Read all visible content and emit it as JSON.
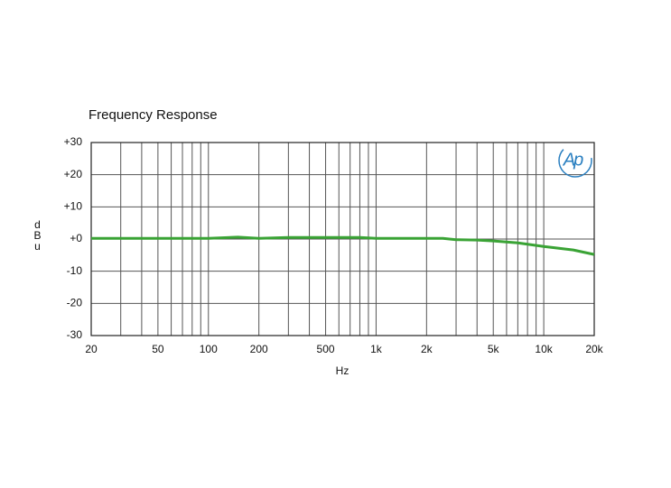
{
  "chart_data": {
    "type": "line",
    "title": "Frequency Response",
    "xlabel": "Hz",
    "ylabel": "dBu",
    "logo_text": "Ap",
    "xscale": "log",
    "grid": true,
    "xlim": [
      20,
      20000
    ],
    "ylim": [
      -30,
      30
    ],
    "xticks": [
      20,
      50,
      100,
      200,
      500,
      {
        "value": 1000,
        "label": "1k"
      },
      {
        "value": 2000,
        "label": "2k"
      },
      {
        "value": 5000,
        "label": "5k"
      },
      {
        "value": 10000,
        "label": "10k"
      },
      {
        "value": 20000,
        "label": "20k"
      }
    ],
    "xminor": [
      30,
      40,
      60,
      70,
      80,
      90,
      300,
      400,
      600,
      700,
      800,
      900,
      3000,
      4000,
      6000,
      7000,
      8000,
      9000
    ],
    "yticks": [
      {
        "value": 30,
        "label": "+30"
      },
      {
        "value": 20,
        "label": "+20"
      },
      {
        "value": 10,
        "label": "+10"
      },
      {
        "value": 0,
        "label": "+0"
      },
      -10,
      -20,
      -30
    ],
    "x": [
      20,
      50,
      100,
      150,
      200,
      300,
      500,
      800,
      1000,
      2000,
      2500,
      3000,
      4000,
      5000,
      7000,
      10000,
      15000,
      20000
    ],
    "series": [
      {
        "color": "#3aa335",
        "values": [
          0.2,
          0.2,
          0.2,
          0.6,
          0.2,
          0.5,
          0.5,
          0.5,
          0.2,
          0.2,
          0.2,
          -0.2,
          -0.3,
          -0.6,
          -1.2,
          -2.3,
          -3.4,
          -4.8
        ]
      }
    ]
  }
}
